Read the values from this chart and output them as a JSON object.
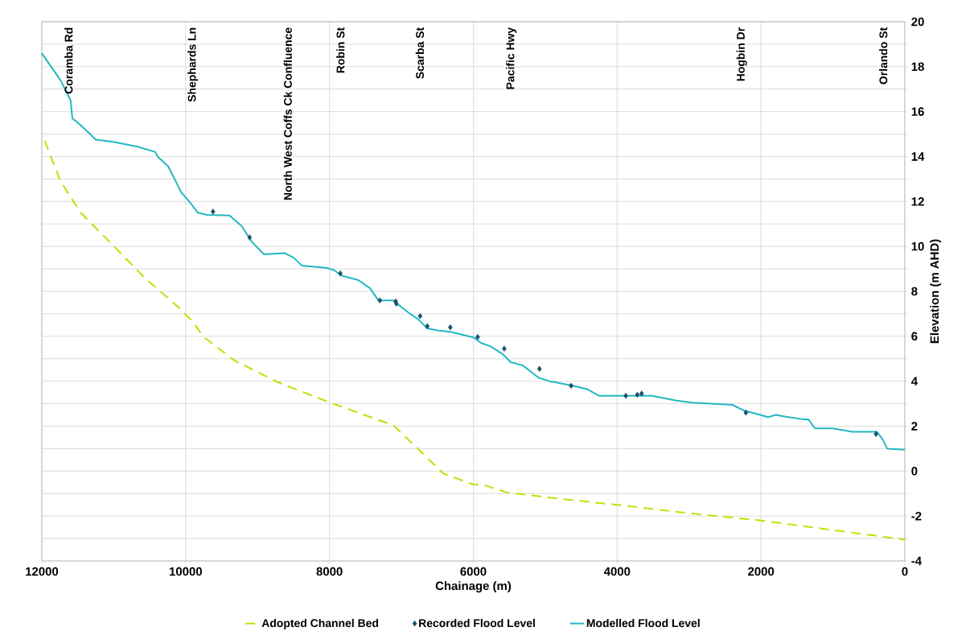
{
  "chart_data": {
    "type": "line",
    "xlabel": "Chainage (m)",
    "ylabel": "Elevation (m AHD)",
    "xlim": [
      12000,
      0
    ],
    "xticks": [
      0,
      2000,
      4000,
      6000,
      8000,
      10000,
      12000
    ],
    "ylim": [
      -4,
      20
    ],
    "yticks": [
      -4,
      {
        "value": -3,
        "label": null
      },
      -2,
      {
        "value": -1,
        "label": null
      },
      0,
      {
        "value": 1,
        "label": null
      },
      2,
      {
        "value": 3,
        "label": null
      },
      4,
      {
        "value": 5,
        "label": null
      },
      6,
      {
        "value": 7,
        "label": null
      },
      8,
      {
        "value": 9,
        "label": null
      },
      10,
      {
        "value": 11,
        "label": null
      },
      12,
      {
        "value": 13,
        "label": null
      },
      14,
      {
        "value": 15,
        "label": null
      },
      16,
      {
        "value": 17,
        "label": null
      },
      18,
      {
        "value": 19,
        "label": null
      },
      20
    ],
    "grid": true,
    "legend": "bottom",
    "series": [
      {
        "name": "Adopted Channel Bed",
        "line_style": "dashed",
        "color": "#c8dc00",
        "x": [
          11960,
          11740,
          11460,
          11010,
          10570,
          10120,
          9900,
          9760,
          9340,
          8720,
          8000,
          7210,
          7100,
          6740,
          6420,
          6000,
          5870,
          5535,
          4750,
          4000,
          3075,
          2000,
          1060,
          0
        ],
        "values": [
          14.7,
          12.9,
          11.5,
          10.05,
          8.6,
          7.35,
          6.65,
          6.0,
          4.96,
          3.96,
          3.06,
          2.15,
          2.0,
          0.9,
          -0.1,
          -0.6,
          -0.6,
          -0.95,
          -1.25,
          -1.5,
          -1.85,
          -2.2,
          -2.6,
          -3.05
        ]
      },
      {
        "name": "Recorded Flood Level",
        "type": "scatter",
        "marker": "diamond",
        "color": "#1b4f6e",
        "x": [
          9620,
          9110,
          7850,
          7300,
          7080,
          7070,
          6740,
          6640,
          6320,
          5940,
          5570,
          5080,
          4640,
          3880,
          3720,
          3660,
          2210,
          400
        ],
        "values": [
          11.55,
          10.4,
          8.8,
          7.6,
          7.55,
          7.45,
          6.9,
          6.45,
          6.4,
          5.97,
          5.45,
          4.55,
          3.8,
          3.35,
          3.4,
          3.45,
          2.6,
          1.65
        ]
      },
      {
        "name": "Modelled Flood Level",
        "line_style": "solid",
        "color": "#22b8c2",
        "x": [
          12000,
          11740,
          11600,
          11575,
          11460,
          11330,
          11250,
          11010,
          10680,
          10420,
          10390,
          10240,
          10060,
          9950,
          9830,
          9700,
          9390,
          9220,
          9080,
          8910,
          8620,
          8500,
          8385,
          8050,
          7940,
          7830,
          7600,
          7440,
          7320,
          7120,
          6900,
          6765,
          6640,
          6485,
          6320,
          6000,
          5890,
          5760,
          5590,
          5480,
          5310,
          5090,
          4940,
          4860,
          4620,
          4420,
          4250,
          3970,
          3520,
          3190,
          2960,
          2400,
          2240,
          2125,
          1900,
          1790,
          1710,
          1400,
          1340,
          1250,
          1005,
          730,
          390,
          315,
          245,
          0
        ],
        "values": [
          18.6,
          17.4,
          16.5,
          15.7,
          15.4,
          15.0,
          14.75,
          14.65,
          14.45,
          14.2,
          14.0,
          13.55,
          12.4,
          12.0,
          11.5,
          11.4,
          11.38,
          10.9,
          10.2,
          9.65,
          9.7,
          9.5,
          9.15,
          9.05,
          8.95,
          8.7,
          8.5,
          8.15,
          7.6,
          7.6,
          7.05,
          6.75,
          6.35,
          6.25,
          6.2,
          5.95,
          5.7,
          5.55,
          5.2,
          4.85,
          4.7,
          4.15,
          4.0,
          3.95,
          3.8,
          3.65,
          3.35,
          3.35,
          3.35,
          3.15,
          3.05,
          2.95,
          2.7,
          2.6,
          2.4,
          2.5,
          2.45,
          2.3,
          2.3,
          1.9,
          1.9,
          1.75,
          1.75,
          1.45,
          1.0,
          0.95
        ]
      }
    ],
    "annotations": [
      "Coramba Rd",
      "Shephards Ln",
      "North West Coffs Ck Confluence",
      "Robin St",
      "Scarba St",
      "Pacific Hwy",
      "Hogbin Dr",
      "Orlando St"
    ]
  }
}
